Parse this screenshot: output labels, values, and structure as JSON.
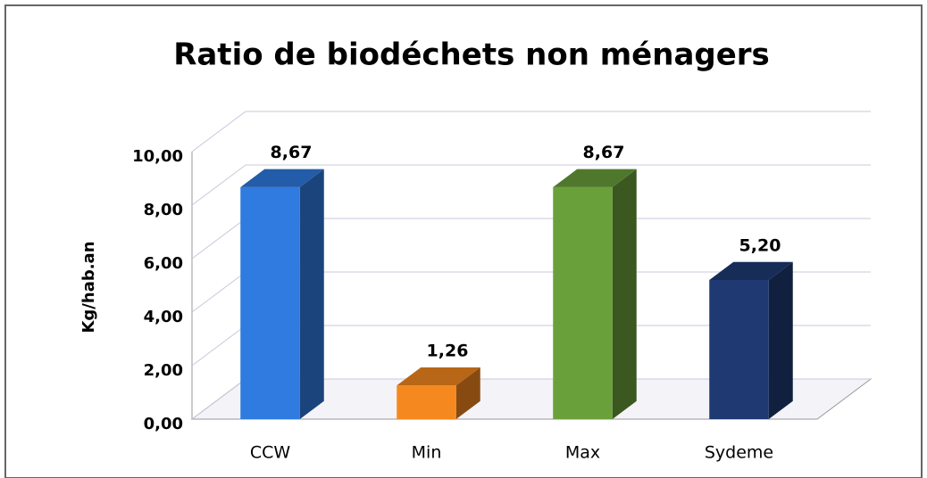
{
  "chart_data": {
    "type": "bar3d",
    "title": "Ratio de biodéchets non ménagers",
    "y_label": "Kg/hab.an",
    "categories": [
      "CCW",
      "Min",
      "Max",
      "Sydeme"
    ],
    "values": [
      8.67,
      1.26,
      8.67,
      5.2
    ],
    "value_labels": [
      "8,67",
      "1,26",
      "8,67",
      "5,20"
    ],
    "colors": [
      "#2f7be0",
      "#f5881f",
      "#6aa03a",
      "#1f3a72"
    ],
    "ylim": [
      0,
      10
    ],
    "yticks": [
      {
        "value": 0,
        "label": "0,00"
      },
      {
        "value": 2,
        "label": "2,00"
      },
      {
        "value": 4,
        "label": "4,00"
      },
      {
        "value": 6,
        "label": "6,00"
      },
      {
        "value": 8,
        "label": "8,00"
      },
      {
        "value": 10,
        "label": "10,00"
      }
    ],
    "grid": true
  }
}
